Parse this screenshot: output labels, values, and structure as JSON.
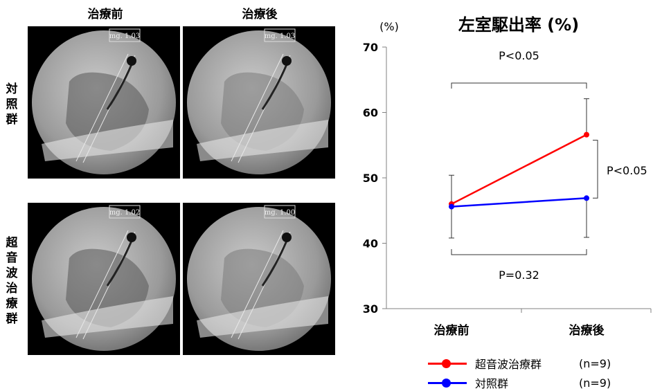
{
  "images": {
    "column_headers": [
      "治療前",
      "治療後"
    ],
    "row_labels": [
      "対照群",
      "超音波治療群"
    ],
    "panels": [
      {
        "mag": "mg. 1.03"
      },
      {
        "mag": "mg. 1.03"
      },
      {
        "mag": "mg. 1.02"
      },
      {
        "mag": "mg. 1.00"
      }
    ]
  },
  "chart_data": {
    "type": "line",
    "title": "左室駆出率 (%)",
    "ylabel": "(%)",
    "categories": [
      "治療前",
      "治療後"
    ],
    "ylim": [
      30,
      70
    ],
    "yticks": [
      30,
      40,
      50,
      60,
      70
    ],
    "series": [
      {
        "name": "超音波治療群",
        "n": "(n=9)",
        "color": "#ff0000",
        "values": [
          46.0,
          56.6
        ],
        "err_upper": [
          50.4,
          62.1
        ]
      },
      {
        "name": "対照群",
        "n": "(n=9)",
        "color": "#0000ff",
        "values": [
          45.6,
          46.9
        ],
        "err_lower": [
          40.8,
          40.9
        ]
      }
    ],
    "annotations": {
      "top": "P<0.05",
      "right": "P<0.05",
      "bottom": "P=0.32"
    }
  }
}
